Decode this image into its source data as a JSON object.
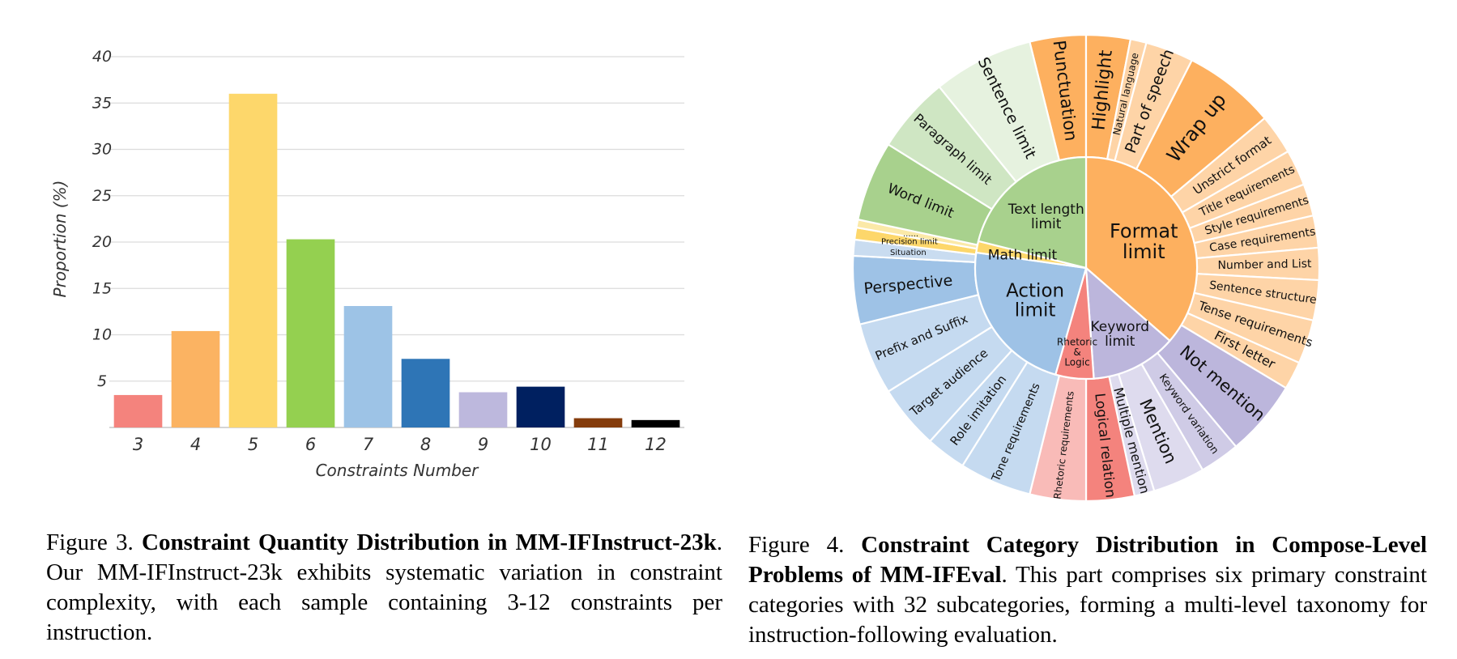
{
  "chart_data": [
    {
      "type": "bar",
      "xlabel": "Constraints Number",
      "ylabel": "Proportion (%)",
      "ylim": [
        0,
        40
      ],
      "yticks": [
        5,
        10,
        15,
        20,
        25,
        30,
        35,
        40
      ],
      "grid": true,
      "categories": [
        "3",
        "4",
        "5",
        "6",
        "7",
        "8",
        "9",
        "10",
        "11",
        "12"
      ],
      "values": [
        3.5,
        10.4,
        36.0,
        20.3,
        13.1,
        7.4,
        3.8,
        4.4,
        1.0,
        0.8
      ],
      "colors": [
        "#f4837d",
        "#fbb362",
        "#fdd76b",
        "#94d050",
        "#9dc3e6",
        "#2e75b6",
        "#bdb8dd",
        "#002060",
        "#843c0c",
        "#000000"
      ]
    },
    {
      "type": "sunburst",
      "inner": [
        {
          "label": "Format limit",
          "size": 8,
          "color": "#fdb05f"
        },
        {
          "label": "Keyword limit",
          "size": 3,
          "color": "#bcb6dc"
        },
        {
          "label": "Rhetoric & Logic",
          "size": 2,
          "color": "#f4837d"
        },
        {
          "label": "Action limit",
          "size": 5,
          "color": "#9ec2e6"
        },
        {
          "label": "Math limit",
          "size": 1,
          "color": "#fdd76b"
        },
        {
          "label": "Text length limit",
          "size": 4,
          "color": "#a8d18d"
        }
      ],
      "outer": [
        {
          "label": "Punctuation",
          "parent": "Format limit"
        },
        {
          "label": "Highlight",
          "parent": "Format limit"
        },
        {
          "label": "Natural language",
          "parent": "Format limit"
        },
        {
          "label": "Part of speech",
          "parent": "Format limit"
        },
        {
          "label": "Wrap up",
          "parent": "Format limit"
        },
        {
          "label": "Unstrict format",
          "parent": "Format limit"
        },
        {
          "label": "Title requirements",
          "parent": "Format limit"
        },
        {
          "label": "Style requirements",
          "parent": "Format limit"
        },
        {
          "label": "Case requirements",
          "parent": "Format limit"
        },
        {
          "label": "Number and List",
          "parent": "Format limit"
        },
        {
          "label": "Sentence structure",
          "parent": "Format limit"
        },
        {
          "label": "Tense requirements",
          "parent": "Format limit"
        },
        {
          "label": "First letter",
          "parent": "Format limit"
        },
        {
          "label": "Not mention",
          "parent": "Keyword limit"
        },
        {
          "label": "Keyword variation",
          "parent": "Keyword limit"
        },
        {
          "label": "Mention",
          "parent": "Keyword limit"
        },
        {
          "label": "Multiple mention",
          "parent": "Keyword limit"
        },
        {
          "label": "Logical relation",
          "parent": "Rhetoric & Logic"
        },
        {
          "label": "Rhetoric requirements",
          "parent": "Rhetoric & Logic"
        },
        {
          "label": "Tone requirements",
          "parent": "Action limit"
        },
        {
          "label": "Role imitation",
          "parent": "Action limit"
        },
        {
          "label": "Target audience",
          "parent": "Action limit"
        },
        {
          "label": "Prefix and Suffix",
          "parent": "Action limit"
        },
        {
          "label": "Perspective",
          "parent": "Action limit"
        },
        {
          "label": "Situation",
          "parent": "Action limit"
        },
        {
          "label": "Precision limit",
          "parent": "Math limit"
        },
        {
          "label": "......",
          "parent": "Math limit"
        },
        {
          "label": "Word limit",
          "parent": "Text length limit"
        },
        {
          "label": "Paragraph limit",
          "parent": "Text length limit"
        },
        {
          "label": "Sentence limit",
          "parent": "Text length limit"
        }
      ]
    }
  ],
  "captions": {
    "fig3_prefix": "Figure 3. ",
    "fig3_title": "Constraint Quantity Distribution in MM-IFInstruct-23k",
    "fig3_body": ". Our MM-IFInstruct-23k exhibits systematic variation in constraint complexity, with each sample containing 3-12 constraints per instruction.",
    "fig4_prefix": "Figure 4. ",
    "fig4_title": "Constraint Category Distribution in Compose-Level Problems of MM-IFEval",
    "fig4_body": ". This part comprises six primary constraint categories with 32 subcategories, forming a multi-level taxonomy for instruction-following evaluation."
  }
}
